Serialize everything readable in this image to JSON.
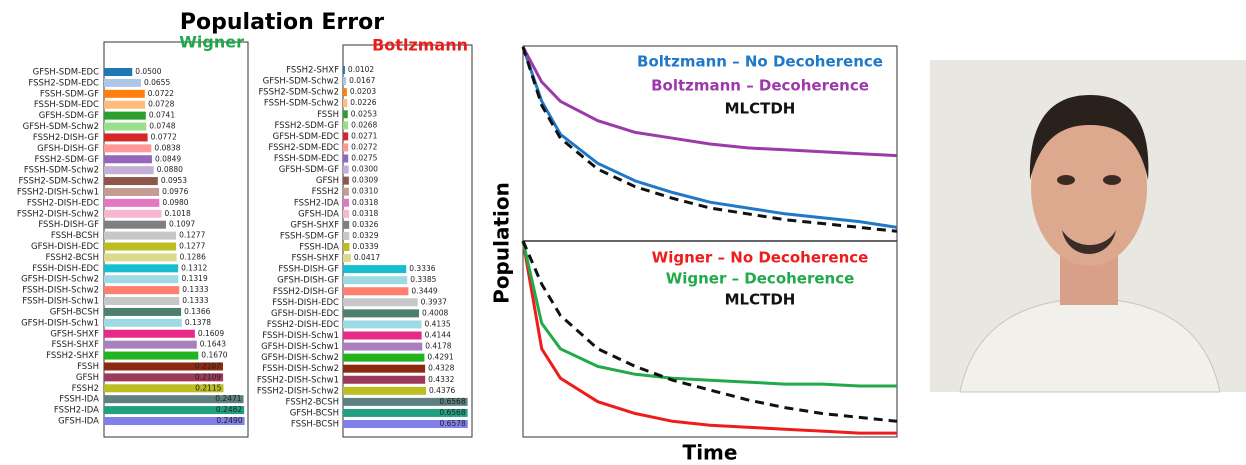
{
  "page_title": "Population Error",
  "chart_data": [
    {
      "type": "barh",
      "title": "Wigner",
      "title_color": "#1fa84a",
      "categories": [
        "GFSH-SDM-EDC",
        "FSSH2-SDM-EDC",
        "FSSH-SDM-GF",
        "FSSH-SDM-EDC",
        "GFSH-SDM-GF",
        "GFSH-SDM-Schw2",
        "FSSH2-DISH-GF",
        "GFSH-DISH-GF",
        "FSSH2-SDM-GF",
        "FSSH-SDM-Schw2",
        "FSSH2-SDM-Schw2",
        "FSSH2-DISH-Schw1",
        "FSSH2-DISH-EDC",
        "FSSH2-DISH-Schw2",
        "FSSH-DISH-GF",
        "FSSH-BCSH",
        "GFSH-DISH-EDC",
        "FSSH2-BCSH",
        "FSSH-DISH-EDC",
        "GFSH-DISH-Schw2",
        "FSSH-DISH-Schw2",
        "FSSH-DISH-Schw1",
        "GFSH-BCSH",
        "GFSH-DISH-Schw1",
        "GFSH-SHXF",
        "FSSH-SHXF",
        "FSSH2-SHXF",
        "FSSH",
        "GFSH",
        "FSSH2",
        "FSSH-IDA",
        "FSSH2-IDA",
        "GFSH-IDA"
      ],
      "values": [
        0.05,
        0.0655,
        0.0722,
        0.0728,
        0.0741,
        0.0748,
        0.0772,
        0.0838,
        0.0849,
        0.088,
        0.0953,
        0.0976,
        0.098,
        0.1018,
        0.1097,
        0.1277,
        0.1277,
        0.1286,
        0.1312,
        0.1319,
        0.1333,
        0.1333,
        0.1366,
        0.1378,
        0.1609,
        0.1643,
        0.167,
        0.2107,
        0.2109,
        0.2115,
        0.2471,
        0.2482,
        0.249
      ],
      "value_labels": [
        "0.0500",
        "0.0655",
        "0.0722",
        "0.0728",
        "0.0741",
        "0.0748",
        "0.0772",
        "0.0838",
        "0.0849",
        "0.0880",
        "0.0953",
        "0.0976",
        "0.0980",
        "0.1018",
        "0.1097",
        "0.1277",
        "0.1277",
        "0.1286",
        "0.1312",
        "0.1319",
        "0.1333",
        "0.1333",
        "0.1366",
        "0.1378",
        "0.1609",
        "0.1643",
        "0.1670",
        "0.2107",
        "0.2109",
        "0.2115",
        "0.2471",
        "0.2482",
        "0.2490"
      ],
      "xlim": [
        0,
        0.255
      ],
      "colors": [
        "#1f77b4",
        "#aec7e8",
        "#ff7f0e",
        "#ffbb78",
        "#2ca02c",
        "#98df8a",
        "#d62728",
        "#ff9896",
        "#9467bd",
        "#c5b0d5",
        "#8c564b",
        "#c49c94",
        "#e377c2",
        "#f7b6d2",
        "#7f7f7f",
        "#c7c7c7",
        "#bcbd22",
        "#dbdb8d",
        "#17becf",
        "#9edae5",
        "#ff7f6e",
        "#c7c7c7",
        "#4e7f6e",
        "#9edae5",
        "#e7298a",
        "#a97fc0",
        "#22b41e",
        "#8b2a10",
        "#9d3a5a",
        "#bcbd22",
        "#5f8080",
        "#20a080",
        "#8080e8"
      ]
    },
    {
      "type": "barh",
      "title": "Botlzmann",
      "title_color": "#e81c1c",
      "categories": [
        "FSSH2-SHXF",
        "GFSH-SDM-Schw2",
        "FSSH2-SDM-Schw2",
        "FSSH-SDM-Schw2",
        "FSSH",
        "FSSH2-SDM-GF",
        "GFSH-SDM-EDC",
        "FSSH2-SDM-EDC",
        "FSSH-SDM-EDC",
        "GFSH-SDM-GF",
        "GFSH",
        "FSSH2",
        "FSSH2-IDA",
        "GFSH-IDA",
        "GFSH-SHXF",
        "FSSH-SDM-GF",
        "FSSH-IDA",
        "FSSH-SHXF",
        "FSSH-DISH-GF",
        "GFSH-DISH-GF",
        "FSSH2-DISH-GF",
        "FSSH-DISH-EDC",
        "GFSH-DISH-EDC",
        "FSSH2-DISH-EDC",
        "FSSH-DISH-Schw1",
        "GFSH-DISH-Schw1",
        "GFSH-DISH-Schw2",
        "FSSH-DISH-Schw2",
        "FSSH2-DISH-Schw1",
        "FSSH2-DISH-Schw2",
        "FSSH2-BCSH",
        "GFSH-BCSH",
        "FSSH-BCSH"
      ],
      "values": [
        0.0102,
        0.0167,
        0.0203,
        0.0226,
        0.0253,
        0.0268,
        0.0271,
        0.0272,
        0.0275,
        0.03,
        0.0309,
        0.031,
        0.0318,
        0.0318,
        0.0326,
        0.0329,
        0.0339,
        0.0417,
        0.3336,
        0.3385,
        0.3449,
        0.3937,
        0.4008,
        0.4135,
        0.4144,
        0.4178,
        0.4291,
        0.4328,
        0.4332,
        0.4376,
        0.6568,
        0.6568,
        0.6578
      ],
      "value_labels": [
        "0.0102",
        "0.0167",
        "0.0203",
        "0.0226",
        "0.0253",
        "0.0268",
        "0.0271",
        "0.0272",
        "0.0275",
        "0.0300",
        "0.0309",
        "0.0310",
        "0.0318",
        "0.0318",
        "0.0326",
        "0.0329",
        "0.0339",
        "0.0417",
        "0.3336",
        "0.3385",
        "0.3449",
        "0.3937",
        "0.4008",
        "0.4135",
        "0.4144",
        "0.4178",
        "0.4291",
        "0.4328",
        "0.4332",
        "0.4376",
        "0.6568",
        "0.6568",
        "0.6578"
      ],
      "xlim": [
        0,
        0.68
      ],
      "colors": [
        "#1f77b4",
        "#aec7e8",
        "#ff7f0e",
        "#ffbb78",
        "#2ca02c",
        "#98df8a",
        "#d62728",
        "#ff9896",
        "#9467bd",
        "#c5b0d5",
        "#8c564b",
        "#c49c94",
        "#e377c2",
        "#f7b6d2",
        "#7f7f7f",
        "#c7c7c7",
        "#bcbd22",
        "#dbdb8d",
        "#17becf",
        "#9edae5",
        "#ff7f6e",
        "#c7c7c7",
        "#4e7f6e",
        "#9edae5",
        "#e7298a",
        "#a97fc0",
        "#22b41e",
        "#8b2a10",
        "#9d3a5a",
        "#bcbd22",
        "#5f8080",
        "#20a080",
        "#8080e8"
      ]
    },
    {
      "type": "line",
      "ylabel": "Population",
      "xlabel": "Time",
      "xlim": [
        0,
        10
      ],
      "ylim": [
        0,
        1
      ],
      "panels": [
        {
          "series": [
            {
              "name": "Boltzmann – No Decoherence",
              "color": "#1f78c8",
              "dashed": false,
              "x": [
                0,
                0.5,
                1,
                2,
                3,
                4,
                5,
                6,
                7,
                8,
                9,
                10
              ],
              "values": [
                1,
                0.72,
                0.55,
                0.4,
                0.31,
                0.25,
                0.2,
                0.17,
                0.14,
                0.12,
                0.1,
                0.07
              ]
            },
            {
              "name": "Boltzmann – Decoherence",
              "color": "#9b3aa8",
              "dashed": false,
              "x": [
                0,
                0.5,
                1,
                2,
                3,
                4,
                5,
                6,
                7,
                8,
                9,
                10
              ],
              "values": [
                1,
                0.82,
                0.72,
                0.62,
                0.56,
                0.53,
                0.5,
                0.48,
                0.47,
                0.46,
                0.45,
                0.44
              ]
            },
            {
              "name": "MLCTDH",
              "color": "#111111",
              "dashed": true,
              "x": [
                0,
                0.5,
                1,
                2,
                3,
                4,
                5,
                6,
                7,
                8,
                9,
                10
              ],
              "values": [
                1,
                0.7,
                0.53,
                0.37,
                0.28,
                0.22,
                0.17,
                0.14,
                0.11,
                0.09,
                0.07,
                0.05
              ]
            }
          ]
        },
        {
          "series": [
            {
              "name": "Wigner – No Decoherence",
              "color": "#ee1c1c",
              "dashed": false,
              "x": [
                0,
                0.5,
                1,
                2,
                3,
                4,
                5,
                6,
                7,
                8,
                9,
                10
              ],
              "values": [
                1,
                0.45,
                0.3,
                0.18,
                0.12,
                0.08,
                0.06,
                0.05,
                0.04,
                0.03,
                0.02,
                0.02
              ]
            },
            {
              "name": "Wigner – Decoherence",
              "color": "#22aa4a",
              "dashed": false,
              "x": [
                0,
                0.5,
                1,
                2,
                3,
                4,
                5,
                6,
                7,
                8,
                9,
                10
              ],
              "values": [
                1,
                0.58,
                0.45,
                0.36,
                0.32,
                0.3,
                0.29,
                0.28,
                0.27,
                0.27,
                0.26,
                0.26
              ]
            },
            {
              "name": "MLCTDH",
              "color": "#111111",
              "dashed": true,
              "x": [
                0,
                0.5,
                1,
                2,
                3,
                4,
                5,
                6,
                7,
                8,
                9,
                10
              ],
              "values": [
                1,
                0.78,
                0.62,
                0.45,
                0.36,
                0.29,
                0.24,
                0.19,
                0.15,
                0.12,
                0.1,
                0.08
              ]
            }
          ]
        }
      ]
    }
  ]
}
